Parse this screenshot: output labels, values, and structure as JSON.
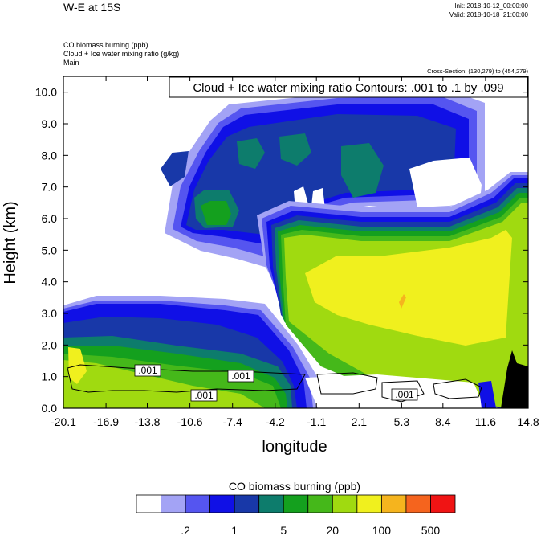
{
  "header": {
    "title": "W-E at 15S",
    "init": "Init: 2018-10-12_00:00:00",
    "valid": "Valid: 2018-10-18_21:00:00",
    "fields": [
      "CO biomass burning   (ppb)",
      "Cloud + Ice water mixing ratio   (g/kg)",
      "Main"
    ],
    "cross_section": "Cross-Section: (130,279) to (454,279)"
  },
  "chart_data": {
    "type": "heatmap",
    "title": "Cloud + Ice water mixing ratio Contours: .001 to .1 by .099",
    "xlabel": "longitude",
    "ylabel": "Height (km)",
    "xticks": [
      "-20.1",
      "-16.9",
      "-13.8",
      "-10.6",
      "-7.4",
      "-4.2",
      "-1.1",
      "2.1",
      "5.3",
      "8.4",
      "11.6",
      "14.8"
    ],
    "xlim": [
      -20.1,
      14.8
    ],
    "yticks": [
      "0.0",
      "1.0",
      "2.0",
      "3.0",
      "4.0",
      "5.0",
      "6.0",
      "7.0",
      "8.0",
      "9.0",
      "10.0"
    ],
    "ylim": [
      0,
      10.5
    ],
    "contour_labels": [
      ".001",
      ".001",
      ".001",
      ".001"
    ],
    "colorbar": {
      "title": "CO biomass burning  (ppb)",
      "tick_labels": [
        ".2",
        "1",
        "5",
        "20",
        "100",
        "500"
      ],
      "colors": [
        "#ffffff",
        "#a3a3f5",
        "#5555f0",
        "#1010e6",
        "#1838a8",
        "#0d7c6c",
        "#14a01e",
        "#45b81a",
        "#a0da10",
        "#f0f01e",
        "#f5b41e",
        "#f5641e",
        "#f01414"
      ]
    }
  }
}
